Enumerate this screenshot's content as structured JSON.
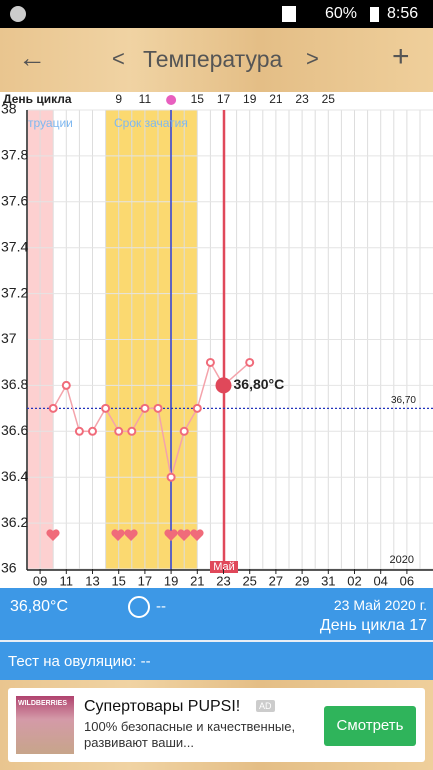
{
  "status_bar": {
    "battery": "60%",
    "time": "8:56"
  },
  "toolbar": {
    "back": "←",
    "prev": "<",
    "title": "Температура",
    "next": ">",
    "add": "+"
  },
  "chart": {
    "cycle_day_label": "День цикла",
    "cycle_days": [
      "9",
      "11",
      null,
      "15",
      "17",
      "19",
      "21",
      "23",
      "25"
    ],
    "categories": [
      null,
      "09",
      null,
      "11",
      null,
      "13",
      null,
      "15",
      null,
      "17",
      null,
      "19",
      null,
      "21",
      null,
      "23",
      null,
      "25",
      null,
      "27",
      null,
      "29",
      null,
      "31",
      null,
      "02",
      null,
      "04",
      null,
      "06",
      null
    ],
    "values": [
      null,
      null,
      36.7,
      36.8,
      36.6,
      36.6,
      36.7,
      36.6,
      36.6,
      36.7,
      36.7,
      36.4,
      36.6,
      36.7,
      36.9,
      36.8,
      null,
      36.9,
      null,
      null,
      null,
      null,
      null,
      null,
      null,
      null,
      null,
      null,
      null,
      null,
      null
    ],
    "ylim": [
      36,
      38
    ],
    "yticks": [
      36,
      36.2,
      36.4,
      36.6,
      36.8,
      37,
      37.2,
      37.4,
      37.6,
      37.8,
      38
    ],
    "selected_label": "36,80°C",
    "average": 36.7,
    "average_label": "36,70",
    "menstruation_label": "труации",
    "fertile_label": "Срок зачатия",
    "month_label": "Май",
    "year_label": "2020"
  },
  "info": {
    "temperature": "36,80°C",
    "note": "--",
    "date": "23 Май 2020 г.",
    "cycle_day": "День цикла 17",
    "ovulation_test": "Тест на овуляцию: --"
  },
  "ad": {
    "brand": "WILDBERRIES",
    "title": "Супертовары PUPSI!",
    "badge": "AD",
    "text": "100% безопасные и качественные, развивают ваши...",
    "button": "Смотреть"
  }
}
